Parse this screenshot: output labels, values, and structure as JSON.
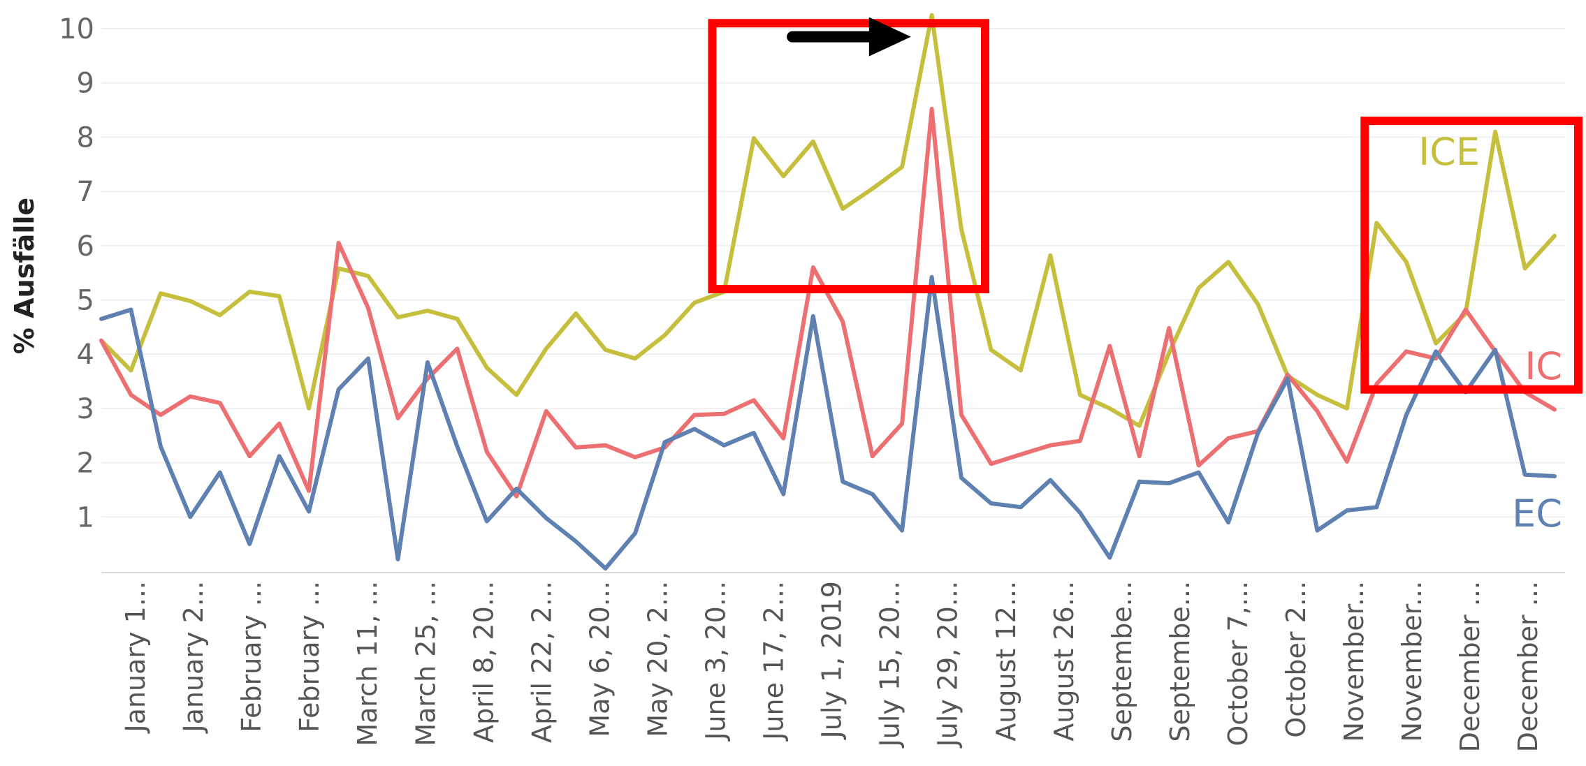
{
  "chart_data": {
    "type": "line",
    "ylabel": "% Ausfälle",
    "xlabel": "",
    "ylim": [
      0,
      10.3
    ],
    "yticks": [
      1,
      2,
      3,
      4,
      5,
      6,
      7,
      8,
      9,
      10
    ],
    "grid": true,
    "x_tick_labels": [
      "January 1...",
      "January 2...",
      "February ...",
      "February ...",
      "March 11, ...",
      "March 25, ...",
      "April 8, 20...",
      "April 22, 2...",
      "May 6, 20...",
      "May 20, 2...",
      "June 3, 20...",
      "June 17, 2...",
      "July 1, 2019",
      "July 15, 20...",
      "July 29, 20...",
      "August 12...",
      "August 26...",
      "Septembe...",
      "Septembe...",
      "October 7,...",
      "October 2...",
      "November...",
      "November...",
      "December ...",
      "December ..."
    ],
    "x_count": 50,
    "series": [
      {
        "name": "ICE",
        "color": "#c6bf3e",
        "values": [
          4.25,
          3.7,
          5.12,
          4.98,
          4.72,
          5.15,
          5.07,
          3.0,
          5.58,
          5.44,
          4.68,
          4.8,
          4.65,
          3.75,
          3.25,
          4.1,
          4.75,
          4.08,
          3.92,
          4.35,
          4.95,
          5.15,
          7.98,
          7.28,
          7.92,
          6.68,
          7.05,
          7.45,
          10.25,
          6.3,
          4.08,
          3.7,
          5.82,
          3.25,
          3.0,
          2.68,
          4.02,
          5.22,
          5.7,
          4.92,
          3.6,
          3.25,
          3.0,
          6.42,
          5.7,
          4.2,
          4.75,
          8.1,
          5.58,
          6.18
        ]
      },
      {
        "name": "IC",
        "color": "#ec7072",
        "values": [
          4.25,
          3.25,
          2.88,
          3.22,
          3.1,
          2.12,
          2.72,
          1.48,
          6.05,
          4.85,
          2.82,
          3.55,
          4.1,
          2.2,
          1.38,
          2.95,
          2.28,
          2.32,
          2.1,
          2.28,
          2.88,
          2.9,
          3.15,
          2.45,
          5.6,
          4.6,
          2.12,
          2.72,
          8.52,
          2.88,
          1.98,
          2.15,
          2.32,
          2.4,
          4.15,
          2.12,
          4.48,
          1.95,
          2.45,
          2.58,
          3.62,
          2.95,
          2.02,
          3.45,
          4.05,
          3.92,
          4.82,
          4.05,
          3.3,
          2.98
        ]
      },
      {
        "name": "EC",
        "color": "#5e81b1",
        "values": [
          4.65,
          4.82,
          2.3,
          1.0,
          1.82,
          0.5,
          2.12,
          1.1,
          3.35,
          3.92,
          0.22,
          3.85,
          2.3,
          0.92,
          1.52,
          0.98,
          0.55,
          0.05,
          0.7,
          2.38,
          2.62,
          2.32,
          2.55,
          1.42,
          4.7,
          1.65,
          1.42,
          0.75,
          5.42,
          1.72,
          1.25,
          1.18,
          1.68,
          1.08,
          0.25,
          1.65,
          1.62,
          1.82,
          0.9,
          2.55,
          3.55,
          0.75,
          1.12,
          1.18,
          2.88,
          4.05,
          3.3,
          4.08,
          1.78,
          1.75
        ]
      }
    ],
    "series_labels": [
      "ICE",
      "IC",
      "EC"
    ],
    "annotations": [
      {
        "type": "box",
        "color": "#ff0000",
        "x_range": [
          20.6,
          29.8
        ],
        "y_range": [
          5.2,
          10.1
        ]
      },
      {
        "type": "box",
        "color": "#ff0000",
        "x_range": [
          42.6,
          49.8
        ],
        "y_range": [
          3.35,
          8.3
        ]
      },
      {
        "type": "arrow",
        "color": "#000000",
        "direction": "right",
        "x_range": [
          23.3,
          27.3
        ],
        "y": 9.85
      }
    ]
  }
}
